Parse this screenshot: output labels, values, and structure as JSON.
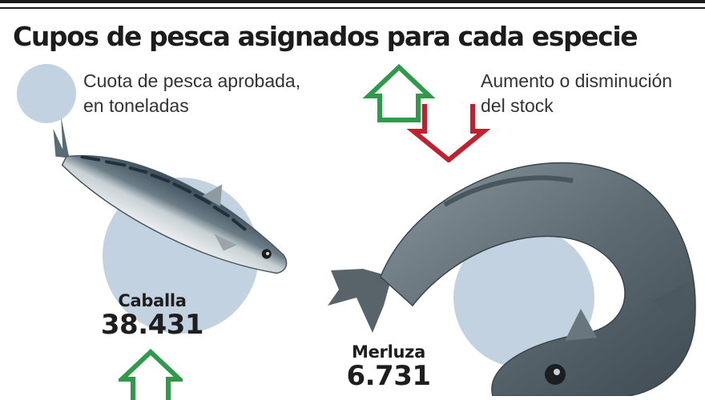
{
  "header": {
    "title": "Cupos de pesca asignados para cada especie"
  },
  "legend": {
    "quota_line1": "Cuota de pesca aprobada,",
    "quota_line2": "en toneladas",
    "stock_line1": "Aumento o disminución",
    "stock_line2": "del stock",
    "up_icon": "arrow-up-outline-icon",
    "down_icon": "arrow-down-outline-icon"
  },
  "colors": {
    "bubble": "#c3d2e0",
    "increase": "#2e9a4a",
    "decrease": "#c0202f",
    "rules": "#1a1a1a"
  },
  "species": [
    {
      "name": "Caballa",
      "quota": "38.431",
      "stock_trend": "increase"
    },
    {
      "name": "Merluza",
      "quota": "6.731"
    }
  ]
}
